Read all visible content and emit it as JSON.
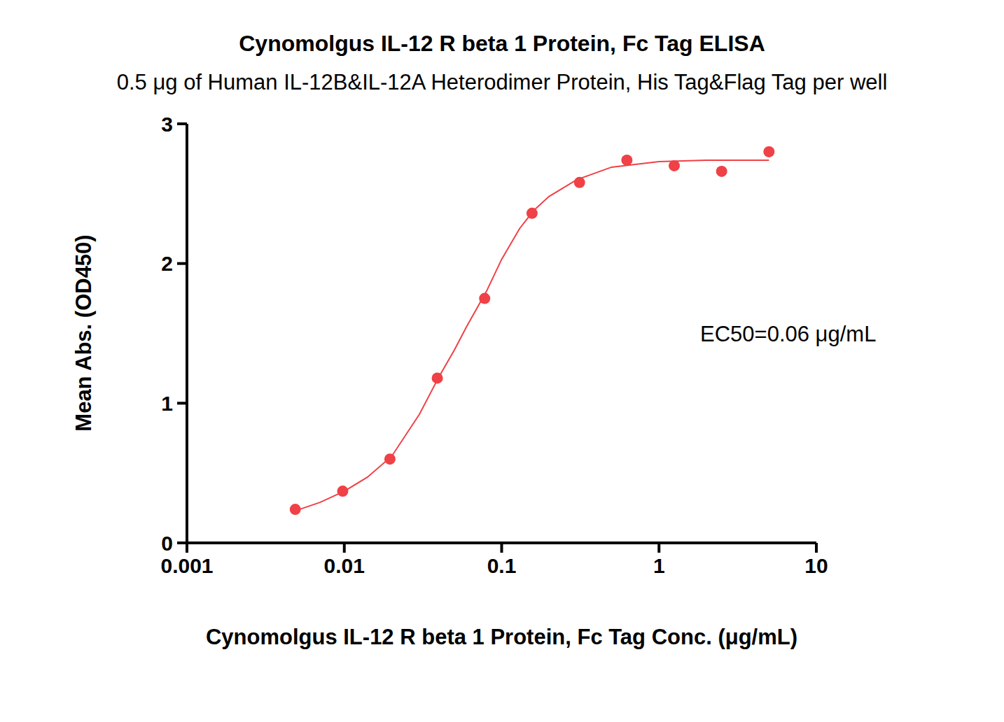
{
  "chart_data": {
    "type": "scatter",
    "title": "Cynomolgus IL-12 R beta 1 Protein, Fc Tag ELISA",
    "subtitle": "0.5 μg of Human IL-12B&IL-12A Heterodimer Protein, His Tag&Flag Tag per well",
    "x_label": "Cynomolgus IL-12 R beta 1 Protein, Fc Tag Conc. (μg/mL)",
    "y_label": "Mean Abs. (OD450)",
    "annotation": "EC50=0.06 μg/mL",
    "log": "x",
    "grid": false,
    "color": "#ef4146",
    "xlim": [
      0.001,
      10
    ],
    "xticks": [
      0.001,
      0.01,
      0.1,
      1,
      10
    ],
    "ylim": [
      0,
      3
    ],
    "yticks": [
      0,
      1,
      2,
      3
    ],
    "series": [
      {
        "type": "scatter",
        "marker": "circle",
        "x": [
          0.00488,
          0.00977,
          0.0195,
          0.039,
          0.078,
          0.156,
          0.3125,
          0.625,
          1.25,
          2.5,
          5
        ],
        "values": [
          0.24,
          0.37,
          0.6,
          1.18,
          1.75,
          2.36,
          2.58,
          2.74,
          2.7,
          2.66,
          2.8
        ]
      },
      {
        "type": "line",
        "line_style": "solid",
        "x": [
          0.00488,
          0.007,
          0.01,
          0.014,
          0.02,
          0.03,
          0.04,
          0.05,
          0.06,
          0.08,
          0.1,
          0.13,
          0.16,
          0.2,
          0.3,
          0.5,
          1,
          2,
          5
        ],
        "values": [
          0.23,
          0.29,
          0.37,
          0.47,
          0.62,
          0.92,
          1.19,
          1.38,
          1.55,
          1.8,
          2.03,
          2.25,
          2.38,
          2.48,
          2.6,
          2.69,
          2.73,
          2.74,
          2.74
        ]
      }
    ]
  }
}
